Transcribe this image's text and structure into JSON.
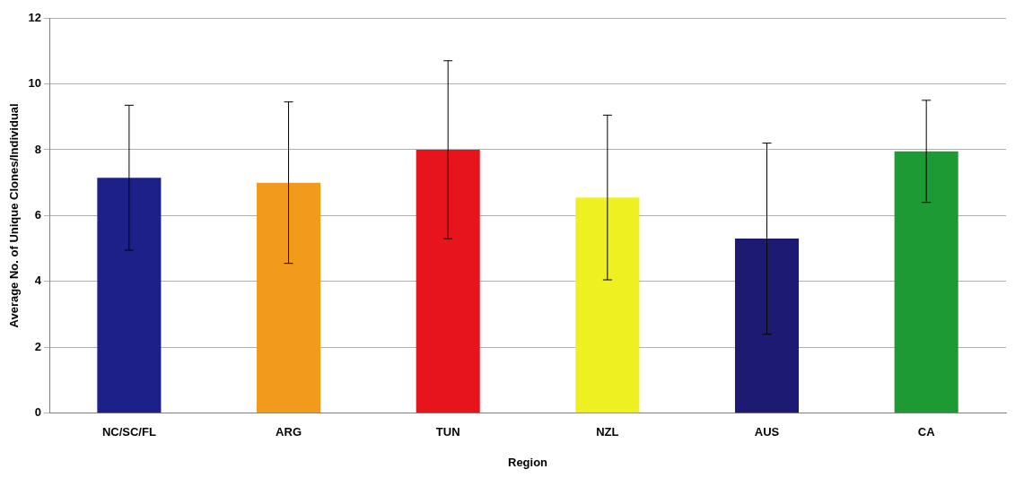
{
  "chart_data": {
    "type": "bar",
    "xlabel": "Region",
    "ylabel": "Average No. of Unique Clones/Individual",
    "categories": [
      "NC/SC/FL",
      "ARG",
      "TUN",
      "NZL",
      "AUS",
      "CA"
    ],
    "values": [
      7.15,
      7.0,
      8.0,
      6.55,
      5.3,
      7.95
    ],
    "errors": [
      2.2,
      2.45,
      2.7,
      2.5,
      2.9,
      1.55
    ],
    "colors": [
      "#1c2088",
      "#f29a1c",
      "#e8141c",
      "#eef022",
      "#1c1a72",
      "#1e9a34"
    ],
    "ylim": [
      0,
      12
    ],
    "yticks": [
      0,
      2,
      4,
      6,
      8,
      10,
      12
    ],
    "grid": "y"
  }
}
